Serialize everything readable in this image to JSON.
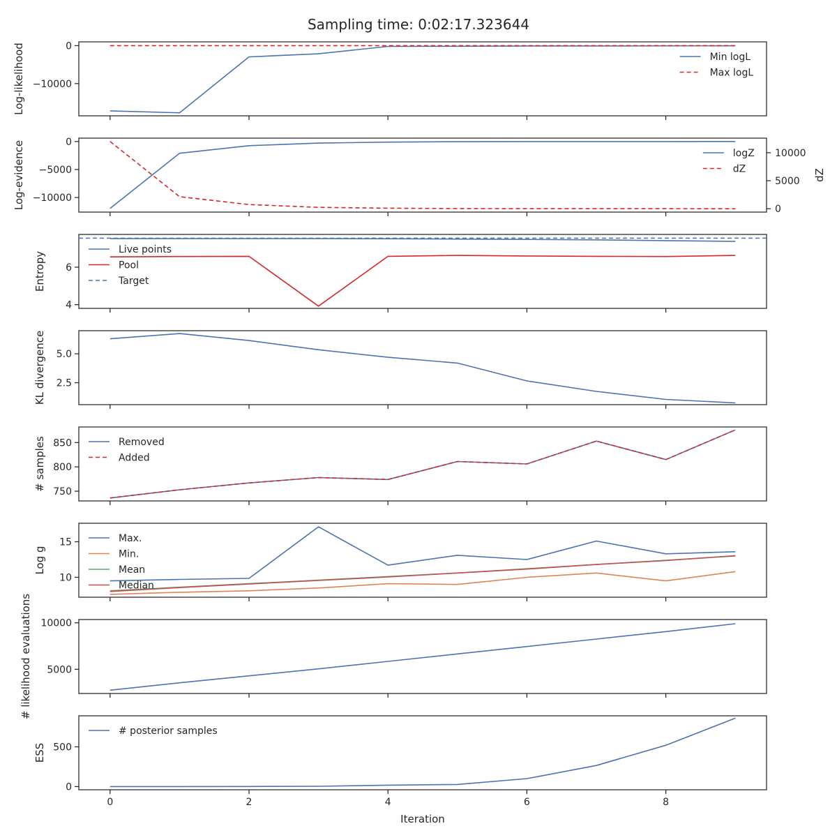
{
  "figure": {
    "title": "Sampling time: 0:02:17.323644",
    "xlabel": "Iteration"
  },
  "colors": {
    "blue": "#4c72b0",
    "red": "#d62728",
    "orange": "#dd8452",
    "green": "#55a868",
    "brownred": "#c44e52",
    "axis": "#262626"
  },
  "chart_data": [
    {
      "type": "line",
      "id": "loglikelihood",
      "ylabel": "Log-likelihood",
      "xlim": [
        -0.45,
        9.45
      ],
      "ylim": [
        -18500,
        1000
      ],
      "yticks": [
        0,
        -10000
      ],
      "ytick_labels": [
        "0",
        "−10000"
      ],
      "legend_position": "upper-right",
      "x": [
        0,
        1,
        2,
        3,
        4,
        5,
        6,
        7,
        8,
        9
      ],
      "series": [
        {
          "name": "Min logL",
          "color": "blue",
          "dash": false,
          "values": [
            -17200,
            -17700,
            -2950,
            -2150,
            -200,
            -150,
            -80,
            -60,
            -40,
            -30
          ]
        },
        {
          "name": "Max logL",
          "color": "red",
          "dash": true,
          "values": [
            0,
            0,
            0,
            0,
            0,
            0,
            0,
            0,
            0,
            0
          ]
        }
      ]
    },
    {
      "type": "line",
      "id": "logevidence",
      "ylabel": "Log-evidence",
      "y2label": "dZ",
      "xlim": [
        -0.45,
        9.45
      ],
      "ylim": [
        -12600,
        600
      ],
      "yticks": [
        0,
        -5000,
        -10000
      ],
      "ytick_labels": [
        "0",
        "−5000",
        "−10000"
      ],
      "y2lim": [
        -600,
        12600
      ],
      "y2ticks": [
        0,
        5000,
        10000
      ],
      "y2tick_labels": [
        "0",
        "5000",
        "10000"
      ],
      "legend_position": "upper-right",
      "x": [
        0,
        1,
        2,
        3,
        4,
        5,
        6,
        7,
        8,
        9
      ],
      "series": [
        {
          "name": "logZ",
          "color": "blue",
          "dash": false,
          "axis": "left",
          "values": [
            -11950,
            -2100,
            -750,
            -280,
            -110,
            -40,
            -15,
            -8,
            -4,
            -2
          ]
        },
        {
          "name": "dZ",
          "color": "red",
          "dash": true,
          "axis": "right",
          "values": [
            12000,
            2150,
            750,
            250,
            100,
            40,
            15,
            8,
            4,
            2
          ]
        }
      ]
    },
    {
      "type": "line",
      "id": "entropy",
      "ylabel": "Entropy",
      "xlim": [
        -0.45,
        9.45
      ],
      "ylim": [
        3.8,
        7.75
      ],
      "yticks": [
        6,
        4
      ],
      "ytick_labels": [
        "6",
        "4"
      ],
      "legend_position": "upper-left",
      "x": [
        0,
        1,
        2,
        3,
        4,
        5,
        6,
        7,
        8,
        9
      ],
      "hline": {
        "name": "Target",
        "value": 7.55,
        "color": "blue"
      },
      "series": [
        {
          "name": "Live points",
          "color": "blue",
          "dash": false,
          "values": [
            7.53,
            7.53,
            7.53,
            7.53,
            7.52,
            7.5,
            7.48,
            7.46,
            7.42,
            7.38
          ]
        },
        {
          "name": "Pool",
          "color": "red",
          "dash": false,
          "values": [
            6.55,
            6.57,
            6.58,
            3.92,
            6.58,
            6.63,
            6.6,
            6.58,
            6.57,
            6.63
          ]
        }
      ]
    },
    {
      "type": "line",
      "id": "kl",
      "ylabel": "KL divergence",
      "xlim": [
        -0.45,
        9.45
      ],
      "ylim": [
        0.6,
        7.0
      ],
      "yticks": [
        5.0,
        2.5
      ],
      "ytick_labels": [
        "5.0",
        "2.5"
      ],
      "x": [
        0,
        1,
        2,
        3,
        4,
        5,
        6,
        7,
        8,
        9
      ],
      "series": [
        {
          "name": "",
          "color": "blue",
          "dash": false,
          "values": [
            6.3,
            6.75,
            6.15,
            5.35,
            4.7,
            4.2,
            2.65,
            1.75,
            1.05,
            0.75
          ]
        }
      ]
    },
    {
      "type": "line",
      "id": "samples",
      "ylabel": "# samples",
      "xlim": [
        -0.45,
        9.45
      ],
      "ylim": [
        730,
        882
      ],
      "yticks": [
        850,
        800,
        750
      ],
      "ytick_labels": [
        "850",
        "800",
        "750"
      ],
      "legend_position": "upper-left",
      "x": [
        0,
        1,
        2,
        3,
        4,
        5,
        6,
        7,
        8,
        9
      ],
      "series": [
        {
          "name": "Removed",
          "color": "blue",
          "dash": false,
          "values": [
            736,
            753,
            767,
            778,
            774,
            811,
            806,
            853,
            815,
            876
          ]
        },
        {
          "name": "Added",
          "color": "red",
          "dash": true,
          "values": [
            736,
            753,
            767,
            778,
            774,
            811,
            806,
            853,
            815,
            876
          ]
        }
      ]
    },
    {
      "type": "line",
      "id": "logg",
      "ylabel": "Log g",
      "xlim": [
        -0.45,
        9.45
      ],
      "ylim": [
        7.2,
        17.6
      ],
      "yticks": [
        15,
        10
      ],
      "ytick_labels": [
        "15",
        "10"
      ],
      "legend_position": "upper-left",
      "x": [
        0,
        1,
        2,
        3,
        4,
        5,
        6,
        7,
        8,
        9
      ],
      "series": [
        {
          "name": "Max.",
          "color": "blue",
          "dash": false,
          "values": [
            9.5,
            9.7,
            9.85,
            17.1,
            11.7,
            13.1,
            12.5,
            15.1,
            13.3,
            13.6
          ]
        },
        {
          "name": "Min.",
          "color": "orange",
          "dash": false,
          "values": [
            7.6,
            7.9,
            8.1,
            8.5,
            9.1,
            9.0,
            10.0,
            10.6,
            9.5,
            10.8
          ]
        },
        {
          "name": "Mean",
          "color": "green",
          "dash": false,
          "values": [
            8.1,
            8.6,
            9.1,
            9.6,
            10.1,
            10.6,
            11.2,
            11.8,
            12.4,
            13.0
          ]
        },
        {
          "name": "Median",
          "color": "brownred",
          "dash": false,
          "values": [
            8.0,
            8.55,
            9.05,
            9.55,
            10.05,
            10.6,
            11.15,
            11.8,
            12.35,
            13.05
          ]
        }
      ]
    },
    {
      "type": "line",
      "id": "likelihood_evals",
      "ylabel": "# likelihood evaluations",
      "xlim": [
        -0.45,
        9.45
      ],
      "ylim": [
        2400,
        10350
      ],
      "yticks": [
        10000,
        5000
      ],
      "ytick_labels": [
        "10000",
        "5000"
      ],
      "x": [
        0,
        1,
        2,
        3,
        4,
        5,
        6,
        7,
        8,
        9
      ],
      "series": [
        {
          "name": "",
          "color": "blue",
          "dash": false,
          "values": [
            2750,
            3550,
            4300,
            5050,
            5850,
            6650,
            7450,
            8250,
            9050,
            9900
          ]
        }
      ]
    },
    {
      "type": "line",
      "id": "ess",
      "ylabel": "ESS",
      "xlabel": "Iteration",
      "xlim": [
        -0.45,
        9.45
      ],
      "ylim": [
        -40,
        890
      ],
      "yticks": [
        500,
        0
      ],
      "ytick_labels": [
        "500",
        "0"
      ],
      "xticks": [
        0,
        2,
        4,
        6,
        8
      ],
      "xtick_labels": [
        "0",
        "2",
        "4",
        "6",
        "8"
      ],
      "legend_position": "upper-left",
      "x": [
        0,
        1,
        2,
        3,
        4,
        5,
        6,
        7,
        8,
        9
      ],
      "series": [
        {
          "name": "# posterior samples",
          "color": "blue",
          "dash": false,
          "values": [
            0,
            0,
            1,
            4,
            18,
            27,
            100,
            265,
            520,
            860
          ]
        }
      ]
    }
  ]
}
